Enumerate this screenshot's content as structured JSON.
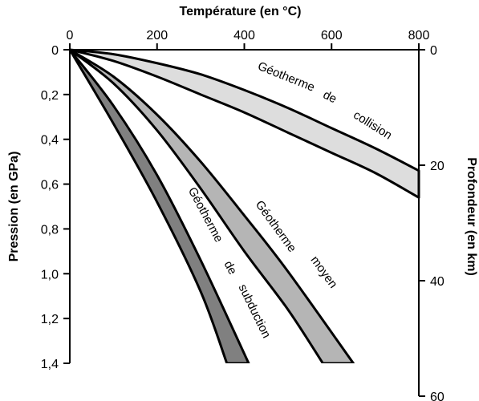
{
  "chart_data": {
    "type": "area",
    "title": "",
    "x_axis": {
      "label": "Température (en °C)",
      "position": "top",
      "ticks": [
        "0",
        "200",
        "400",
        "600",
        "800"
      ],
      "range": [
        0,
        800
      ]
    },
    "y_axis_left": {
      "label": "Pression (en GPa)",
      "ticks": [
        "0",
        "0,2",
        "0,4",
        "0,6",
        "0,8",
        "1,0",
        "1,2",
        "1,4"
      ],
      "range": [
        0,
        1.4
      ],
      "inverted": true
    },
    "y_axis_right": {
      "label": "Profondeur (en km)",
      "ticks": [
        "0",
        "20",
        "40",
        "60"
      ],
      "range": [
        0,
        60
      ],
      "inverted": true
    },
    "grid": false,
    "legend": "none",
    "series": [
      {
        "name": "Géotherme de subduction",
        "fill": "#808080",
        "left_edge": [
          {
            "t": 0,
            "p": 0
          },
          {
            "t": 100,
            "p": 0.33
          },
          {
            "t": 200,
            "p": 0.68
          },
          {
            "t": 300,
            "p": 1.08
          },
          {
            "t": 360,
            "p": 1.4
          }
        ],
        "right_edge": [
          {
            "t": 0,
            "p": 0
          },
          {
            "t": 100,
            "p": 0.25
          },
          {
            "t": 200,
            "p": 0.56
          },
          {
            "t": 300,
            "p": 0.94
          },
          {
            "t": 410,
            "p": 1.4
          }
        ]
      },
      {
        "name": "Géotherme moyen",
        "fill": "#b5b5b5",
        "left_edge": [
          {
            "t": 0,
            "p": 0
          },
          {
            "t": 100,
            "p": 0.15
          },
          {
            "t": 200,
            "p": 0.36
          },
          {
            "t": 300,
            "p": 0.62
          },
          {
            "t": 400,
            "p": 0.9
          },
          {
            "t": 500,
            "p": 1.16
          },
          {
            "t": 580,
            "p": 1.4
          }
        ],
        "right_edge": [
          {
            "t": 0,
            "p": 0
          },
          {
            "t": 100,
            "p": 0.12
          },
          {
            "t": 200,
            "p": 0.29
          },
          {
            "t": 300,
            "p": 0.5
          },
          {
            "t": 400,
            "p": 0.74
          },
          {
            "t": 500,
            "p": 0.99
          },
          {
            "t": 650,
            "p": 1.4
          }
        ]
      },
      {
        "name": "Géotherme de collision",
        "fill": "#dddddd",
        "upper_edge": [
          {
            "t": 0,
            "p": 0
          },
          {
            "t": 100,
            "p": 0.02
          },
          {
            "t": 200,
            "p": 0.06
          },
          {
            "t": 300,
            "p": 0.11
          },
          {
            "t": 400,
            "p": 0.18
          },
          {
            "t": 500,
            "p": 0.26
          },
          {
            "t": 600,
            "p": 0.35
          },
          {
            "t": 700,
            "p": 0.44
          },
          {
            "t": 800,
            "p": 0.54
          }
        ],
        "lower_edge": [
          {
            "t": 0,
            "p": 0
          },
          {
            "t": 100,
            "p": 0.05
          },
          {
            "t": 200,
            "p": 0.12
          },
          {
            "t": 300,
            "p": 0.2
          },
          {
            "t": 400,
            "p": 0.28
          },
          {
            "t": 500,
            "p": 0.37
          },
          {
            "t": 600,
            "p": 0.46
          },
          {
            "t": 700,
            "p": 0.55
          },
          {
            "t": 800,
            "p": 0.66
          }
        ]
      }
    ],
    "annotations": [
      {
        "words": [
          "Géotherme",
          "de",
          "collision"
        ],
        "series": "Géotherme de collision"
      },
      {
        "words": [
          "Géotherme",
          "moyen"
        ],
        "series": "Géotherme moyen"
      },
      {
        "words": [
          "Géotherme",
          "de",
          "subduction"
        ],
        "series": "Géotherme de subduction"
      }
    ]
  }
}
